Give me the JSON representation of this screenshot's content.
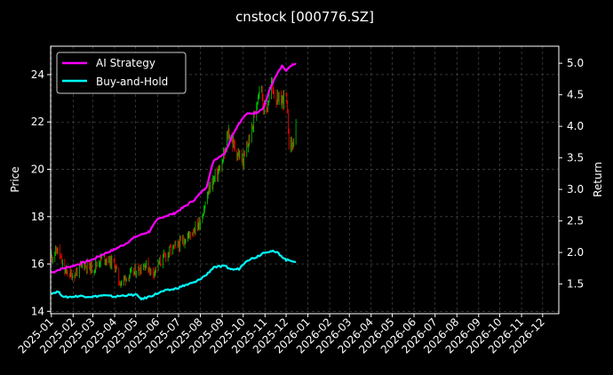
{
  "chart_data": {
    "type": "line",
    "title": "cnstock [000776.SZ]",
    "xlabel": "",
    "ylabel_left": "Price",
    "ylabel_right": "Return",
    "x_ticks": [
      "2025-01",
      "2025-02",
      "2025-03",
      "2025-04",
      "2025-05",
      "2025-06",
      "2025-07",
      "2025-08",
      "2025-09",
      "2025-10",
      "2025-11",
      "2025-12",
      "2026-01",
      "2026-02",
      "2026-03",
      "2026-04",
      "2026-05",
      "2026-06",
      "2026-07",
      "2026-08",
      "2026-09",
      "2026-10",
      "2026-11",
      "2026-12"
    ],
    "x_range": [
      "2024-12-31",
      "2026-12-24"
    ],
    "ylim_left": [
      13.9,
      25.2
    ],
    "yticks_left": [
      14,
      16,
      18,
      20,
      22,
      24
    ],
    "ylim_right": [
      1.03,
      5.27
    ],
    "yticks_right": [
      1.5,
      2.0,
      2.5,
      3.0,
      3.5,
      4.0,
      4.5,
      5.0
    ],
    "grid": true,
    "legend_position": "top-left",
    "colors": {
      "background": "#000000",
      "ai": "#ff00ff",
      "hold": "#00ffff",
      "up": "#00cc00",
      "down": "#ff0000",
      "grid": "#555555"
    },
    "price_series": {
      "dates": [
        "2025-01-01",
        "2025-01-10",
        "2025-01-20",
        "2025-02-01",
        "2025-02-15",
        "2025-03-01",
        "2025-03-15",
        "2025-04-01",
        "2025-04-08",
        "2025-04-20",
        "2025-05-01",
        "2025-05-15",
        "2025-05-25",
        "2025-06-05",
        "2025-06-20",
        "2025-07-01",
        "2025-07-15",
        "2025-08-01",
        "2025-08-15",
        "2025-09-01",
        "2025-09-10",
        "2025-09-20",
        "2025-10-01",
        "2025-10-15",
        "2025-10-25",
        "2025-11-01",
        "2025-11-10",
        "2025-11-20",
        "2025-12-01",
        "2025-12-05",
        "2025-12-10",
        "2025-12-15"
      ],
      "close": [
        16.3,
        16.6,
        15.7,
        15.5,
        16.0,
        15.8,
        16.3,
        16.0,
        15.2,
        15.5,
        15.7,
        16.0,
        15.6,
        16.1,
        16.6,
        16.8,
        17.2,
        17.8,
        19.3,
        20.2,
        21.6,
        20.8,
        20.3,
        21.9,
        23.8,
        22.2,
        23.6,
        22.8,
        23.1,
        21.2,
        21.0,
        21.7
      ]
    },
    "series": [
      {
        "name": "AI Strategy",
        "dates": [
          "2025-01-01",
          "2025-01-15",
          "2025-02-01",
          "2025-02-15",
          "2025-03-01",
          "2025-03-15",
          "2025-04-01",
          "2025-04-15",
          "2025-05-01",
          "2025-05-20",
          "2025-06-01",
          "2025-06-10",
          "2025-06-25",
          "2025-07-10",
          "2025-07-25",
          "2025-08-10",
          "2025-08-20",
          "2025-09-05",
          "2025-09-15",
          "2025-09-25",
          "2025-10-05",
          "2025-10-20",
          "2025-10-30",
          "2025-11-10",
          "2025-11-18",
          "2025-11-25",
          "2025-12-01",
          "2025-12-10",
          "2025-12-15"
        ],
        "values": [
          1.68,
          1.74,
          1.79,
          1.84,
          1.89,
          1.97,
          2.05,
          2.13,
          2.25,
          2.33,
          2.52,
          2.57,
          2.62,
          2.73,
          2.85,
          3.05,
          3.46,
          3.58,
          3.85,
          4.05,
          4.19,
          4.22,
          4.3,
          4.65,
          4.82,
          4.95,
          4.88,
          4.97,
          4.98
        ]
      },
      {
        "name": "Buy-and-Hold",
        "dates": [
          "2025-01-01",
          "2025-01-10",
          "2025-01-20",
          "2025-02-10",
          "2025-03-01",
          "2025-03-15",
          "2025-04-01",
          "2025-04-15",
          "2025-05-01",
          "2025-05-10",
          "2025-05-25",
          "2025-06-10",
          "2025-06-25",
          "2025-07-10",
          "2025-07-25",
          "2025-08-10",
          "2025-08-20",
          "2025-09-05",
          "2025-09-15",
          "2025-09-25",
          "2025-10-05",
          "2025-10-20",
          "2025-11-01",
          "2025-11-10",
          "2025-11-20",
          "2025-12-01",
          "2025-12-10",
          "2025-12-15"
        ],
        "values": [
          1.35,
          1.38,
          1.29,
          1.31,
          1.3,
          1.32,
          1.3,
          1.32,
          1.33,
          1.26,
          1.32,
          1.39,
          1.42,
          1.48,
          1.53,
          1.65,
          1.77,
          1.78,
          1.73,
          1.74,
          1.87,
          1.93,
          2.01,
          2.02,
          1.99,
          1.88,
          1.87,
          1.85
        ]
      }
    ]
  }
}
